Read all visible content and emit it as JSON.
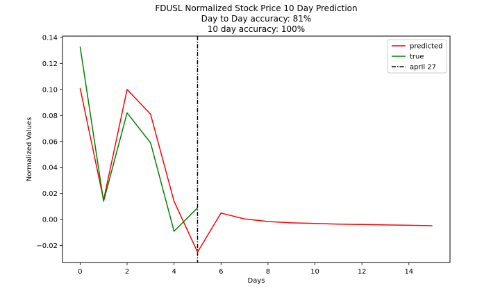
{
  "chart_data": {
    "type": "line",
    "title_lines": [
      "FDUSL Normalized Stock Price 10 Day Prediction",
      "Day to Day accuracy: 81%",
      "10 day accuracy: 100%"
    ],
    "xlabel": "Days",
    "ylabel": "Normalized Values",
    "xlim": [
      -0.75,
      15.75
    ],
    "ylim": [
      -0.033,
      0.141
    ],
    "x_ticks": [
      0,
      2,
      4,
      6,
      8,
      10,
      12,
      14
    ],
    "y_ticks": [
      -0.02,
      0.0,
      0.02,
      0.04,
      0.06,
      0.08,
      0.1,
      0.12,
      0.14
    ],
    "y_tick_labels": [
      "−0.02",
      "0.00",
      "0.02",
      "0.04",
      "0.06",
      "0.08",
      "0.10",
      "0.12",
      "0.14"
    ],
    "grid": false,
    "legend_position": "top-right",
    "series": [
      {
        "name": "predicted",
        "color": "#ff0000",
        "x": [
          0,
          1,
          2,
          3,
          4,
          5,
          6,
          7,
          8,
          9,
          10,
          11,
          12,
          13,
          14,
          15
        ],
        "y": [
          0.101,
          0.015,
          0.1,
          0.081,
          0.014,
          -0.025,
          0.005,
          0.0005,
          -0.0015,
          -0.0025,
          -0.003,
          -0.0035,
          -0.0038,
          -0.0041,
          -0.0044,
          -0.0047
        ]
      },
      {
        "name": "true",
        "color": "#008000",
        "x": [
          0,
          1,
          2,
          3,
          4,
          5
        ],
        "y": [
          0.133,
          0.014,
          0.082,
          0.059,
          -0.009,
          0.009
        ]
      }
    ],
    "vline": {
      "name": "april 27",
      "x": 5,
      "color": "#000000",
      "style": "dashdot"
    }
  }
}
